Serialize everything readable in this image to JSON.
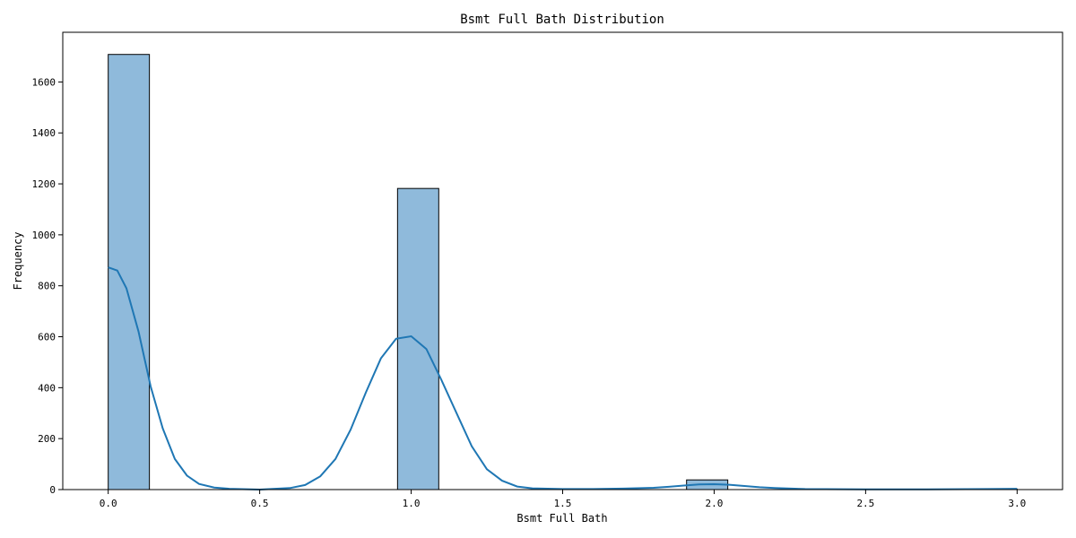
{
  "chart_data": {
    "type": "bar",
    "title": "Bsmt Full Bath Distribution",
    "xlabel": "Bsmt Full Bath",
    "ylabel": "Frequency",
    "xlim": [
      -0.15,
      3.15
    ],
    "ylim": [
      0,
      1795
    ],
    "xticks": [
      0.0,
      0.5,
      1.0,
      1.5,
      2.0,
      2.5,
      3.0
    ],
    "xtick_labels": [
      "0.0",
      "0.5",
      "1.0",
      "1.5",
      "2.0",
      "2.5",
      "3.0"
    ],
    "yticks": [
      0,
      200,
      400,
      600,
      800,
      1000,
      1200,
      1400,
      1600
    ],
    "ytick_labels": [
      "0",
      "200",
      "400",
      "600",
      "800",
      "1000",
      "1200",
      "1400",
      "1600"
    ],
    "grid": false,
    "bins": [
      {
        "x0": 0.0,
        "x1": 0.136,
        "count": 1708
      },
      {
        "x0": 0.955,
        "x1": 1.091,
        "count": 1182
      },
      {
        "x0": 1.909,
        "x1": 2.045,
        "count": 38
      },
      {
        "x0": 2.864,
        "x1": 3.0,
        "count": 2
      }
    ],
    "kde": {
      "x": [
        0.0,
        0.03,
        0.06,
        0.1,
        0.14,
        0.18,
        0.22,
        0.26,
        0.3,
        0.35,
        0.4,
        0.5,
        0.6,
        0.65,
        0.7,
        0.75,
        0.8,
        0.85,
        0.9,
        0.95,
        1.0,
        1.05,
        1.1,
        1.15,
        1.2,
        1.25,
        1.3,
        1.35,
        1.4,
        1.5,
        1.6,
        1.7,
        1.8,
        1.85,
        1.9,
        1.95,
        2.0,
        2.05,
        2.1,
        2.15,
        2.2,
        2.3,
        2.5,
        2.7,
        2.9,
        3.0
      ],
      "y": [
        872,
        860,
        790,
        620,
        405,
        240,
        120,
        55,
        22,
        8,
        3,
        0,
        6,
        18,
        52,
        120,
        235,
        380,
        515,
        592,
        602,
        552,
        430,
        300,
        170,
        80,
        35,
        12,
        5,
        2,
        2,
        4,
        7,
        11,
        16,
        20,
        21,
        19,
        14,
        9,
        6,
        2,
        1,
        1,
        2,
        3
      ]
    },
    "colors": {
      "bar_fill": "#8fbadb",
      "bar_edge": "#000000",
      "kde_line": "#1f77b4"
    }
  }
}
